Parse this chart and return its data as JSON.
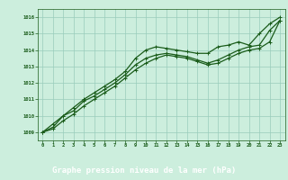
{
  "title": "Graphe pression niveau de la mer (hPa)",
  "bg_color": "#cceedd",
  "plot_bg_color": "#cceedd",
  "label_bg_color": "#2d6a2d",
  "line_color": "#1a5c1a",
  "label_text_color": "#ffffff",
  "grid_color": "#99ccbb",
  "xlim": [
    -0.5,
    23.5
  ],
  "ylim": [
    1008.5,
    1016.5
  ],
  "xticks": [
    0,
    1,
    2,
    3,
    4,
    5,
    6,
    7,
    8,
    9,
    10,
    11,
    12,
    13,
    14,
    15,
    16,
    17,
    18,
    19,
    20,
    21,
    22,
    23
  ],
  "yticks": [
    1009,
    1010,
    1011,
    1012,
    1013,
    1014,
    1015,
    1016
  ],
  "line1_x": [
    0,
    1,
    2,
    3,
    4,
    5,
    6,
    7,
    8,
    9,
    10,
    11,
    12,
    13,
    14,
    15,
    16,
    17,
    18,
    19,
    20,
    21,
    22,
    23
  ],
  "line1_y": [
    1009.0,
    1009.5,
    1010.0,
    1010.5,
    1011.0,
    1011.4,
    1011.8,
    1012.2,
    1012.7,
    1013.5,
    1014.0,
    1014.2,
    1014.1,
    1014.0,
    1013.9,
    1013.8,
    1013.8,
    1014.2,
    1014.3,
    1014.5,
    1014.3,
    1015.0,
    1015.6,
    1016.0
  ],
  "line2_x": [
    0,
    1,
    2,
    3,
    4,
    5,
    6,
    7,
    8,
    9,
    10,
    11,
    12,
    13,
    14,
    15,
    16,
    17,
    18,
    19,
    20,
    21,
    22,
    23
  ],
  "line2_y": [
    1009.0,
    1009.3,
    1010.0,
    1010.3,
    1010.9,
    1011.2,
    1011.6,
    1012.0,
    1012.5,
    1013.1,
    1013.5,
    1013.7,
    1013.8,
    1013.7,
    1013.6,
    1013.4,
    1013.2,
    1013.4,
    1013.7,
    1014.0,
    1014.2,
    1014.3,
    1015.2,
    1015.8
  ],
  "line3_x": [
    0,
    1,
    2,
    3,
    4,
    5,
    6,
    7,
    8,
    9,
    10,
    11,
    12,
    13,
    14,
    15,
    16,
    17,
    18,
    19,
    20,
    21,
    22,
    23
  ],
  "line3_y": [
    1009.0,
    1009.2,
    1009.7,
    1010.1,
    1010.6,
    1011.0,
    1011.4,
    1011.8,
    1012.3,
    1012.8,
    1013.2,
    1013.5,
    1013.7,
    1013.6,
    1013.5,
    1013.3,
    1013.1,
    1013.2,
    1013.5,
    1013.8,
    1014.0,
    1014.1,
    1014.5,
    1015.8
  ]
}
